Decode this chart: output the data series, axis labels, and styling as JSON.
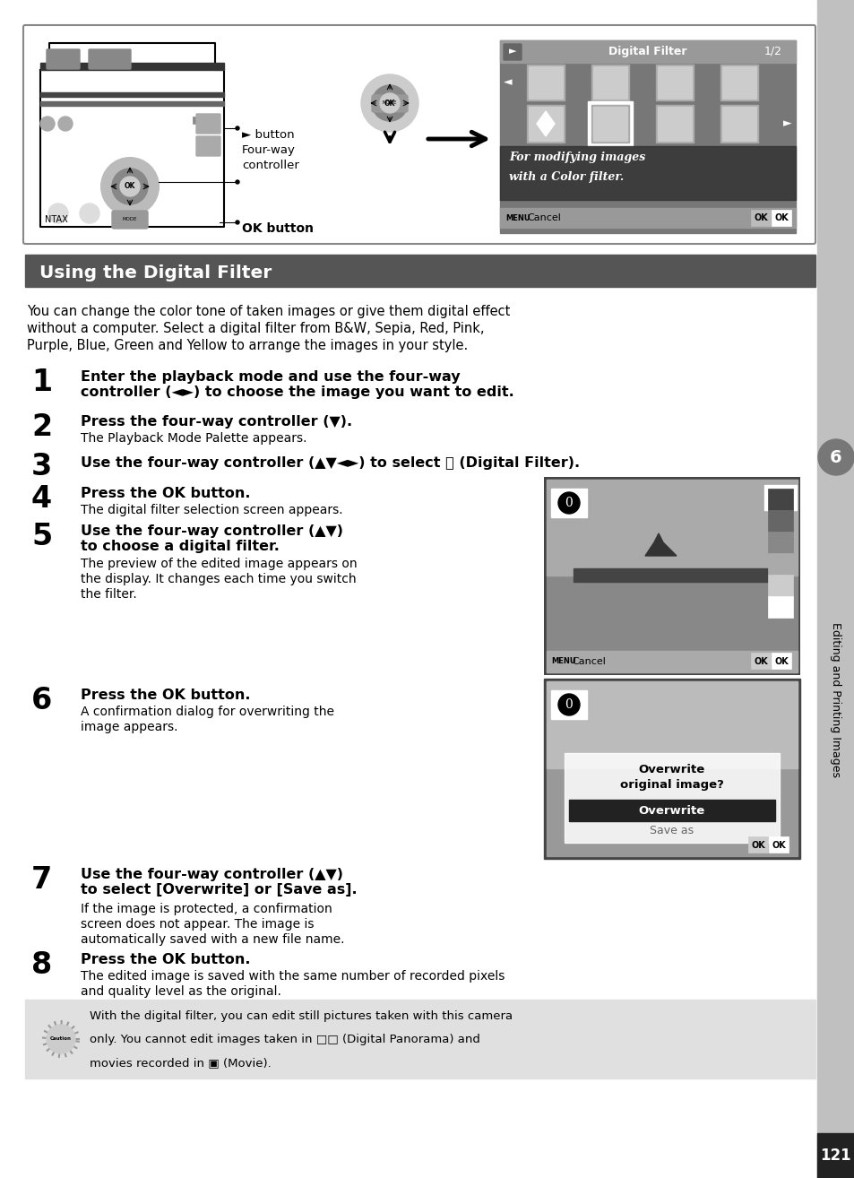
{
  "page_bg": "#ffffff",
  "sidebar_bg": "#c0c0c0",
  "page_number": "121",
  "sidebar_text": "Editing and Printing Images",
  "sidebar_circle_num": "6",
  "section_header_bg": "#555555",
  "section_header_text": "Using the Digital Filter",
  "section_header_color": "#ffffff",
  "intro_lines": [
    "You can change the color tone of taken images or give them digital effect",
    "without a computer. Select a digital filter from B&W, Sepia, Red, Pink,",
    "Purple, Blue, Green and Yellow to arrange the images in your style."
  ],
  "caution_bg": "#e0e0e0",
  "caution_lines": [
    "With the digital filter, you can edit still pictures taken with this camera",
    "only. You cannot edit images taken in □□ (Digital Panorama) and",
    "movies recorded in ▣ (Movie)."
  ]
}
